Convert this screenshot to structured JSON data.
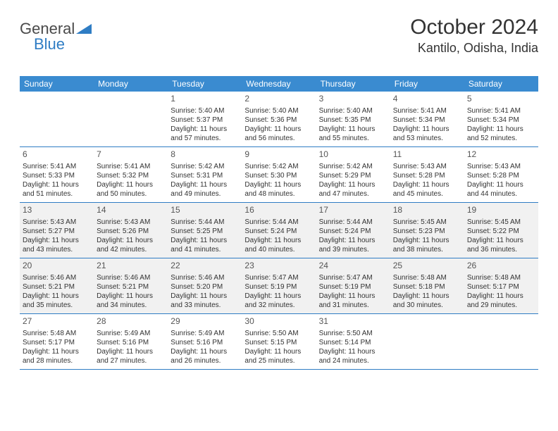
{
  "logo": {
    "part1": "General",
    "part2": "Blue"
  },
  "title": "October 2024",
  "location": "Kantilo, Odisha, India",
  "colors": {
    "header_bg": "#3a8bd0",
    "accent": "#2f7dc4",
    "text": "#333333",
    "shade_row_bg": "#f1f1f1"
  },
  "day_headers": [
    "Sunday",
    "Monday",
    "Tuesday",
    "Wednesday",
    "Thursday",
    "Friday",
    "Saturday"
  ],
  "weeks": [
    [
      null,
      null,
      {
        "n": "1",
        "sr": "5:40 AM",
        "ss": "5:37 PM",
        "d1": "11 hours",
        "d2": "57 minutes."
      },
      {
        "n": "2",
        "sr": "5:40 AM",
        "ss": "5:36 PM",
        "d1": "11 hours",
        "d2": "56 minutes."
      },
      {
        "n": "3",
        "sr": "5:40 AM",
        "ss": "5:35 PM",
        "d1": "11 hours",
        "d2": "55 minutes."
      },
      {
        "n": "4",
        "sr": "5:41 AM",
        "ss": "5:34 PM",
        "d1": "11 hours",
        "d2": "53 minutes."
      },
      {
        "n": "5",
        "sr": "5:41 AM",
        "ss": "5:34 PM",
        "d1": "11 hours",
        "d2": "52 minutes."
      }
    ],
    [
      {
        "n": "6",
        "sr": "5:41 AM",
        "ss": "5:33 PM",
        "d1": "11 hours",
        "d2": "51 minutes."
      },
      {
        "n": "7",
        "sr": "5:41 AM",
        "ss": "5:32 PM",
        "d1": "11 hours",
        "d2": "50 minutes."
      },
      {
        "n": "8",
        "sr": "5:42 AM",
        "ss": "5:31 PM",
        "d1": "11 hours",
        "d2": "49 minutes."
      },
      {
        "n": "9",
        "sr": "5:42 AM",
        "ss": "5:30 PM",
        "d1": "11 hours",
        "d2": "48 minutes."
      },
      {
        "n": "10",
        "sr": "5:42 AM",
        "ss": "5:29 PM",
        "d1": "11 hours",
        "d2": "47 minutes."
      },
      {
        "n": "11",
        "sr": "5:43 AM",
        "ss": "5:28 PM",
        "d1": "11 hours",
        "d2": "45 minutes."
      },
      {
        "n": "12",
        "sr": "5:43 AM",
        "ss": "5:28 PM",
        "d1": "11 hours",
        "d2": "44 minutes."
      }
    ],
    [
      {
        "n": "13",
        "sr": "5:43 AM",
        "ss": "5:27 PM",
        "d1": "11 hours",
        "d2": "43 minutes."
      },
      {
        "n": "14",
        "sr": "5:43 AM",
        "ss": "5:26 PM",
        "d1": "11 hours",
        "d2": "42 minutes."
      },
      {
        "n": "15",
        "sr": "5:44 AM",
        "ss": "5:25 PM",
        "d1": "11 hours",
        "d2": "41 minutes."
      },
      {
        "n": "16",
        "sr": "5:44 AM",
        "ss": "5:24 PM",
        "d1": "11 hours",
        "d2": "40 minutes."
      },
      {
        "n": "17",
        "sr": "5:44 AM",
        "ss": "5:24 PM",
        "d1": "11 hours",
        "d2": "39 minutes."
      },
      {
        "n": "18",
        "sr": "5:45 AM",
        "ss": "5:23 PM",
        "d1": "11 hours",
        "d2": "38 minutes."
      },
      {
        "n": "19",
        "sr": "5:45 AM",
        "ss": "5:22 PM",
        "d1": "11 hours",
        "d2": "36 minutes."
      }
    ],
    [
      {
        "n": "20",
        "sr": "5:46 AM",
        "ss": "5:21 PM",
        "d1": "11 hours",
        "d2": "35 minutes."
      },
      {
        "n": "21",
        "sr": "5:46 AM",
        "ss": "5:21 PM",
        "d1": "11 hours",
        "d2": "34 minutes."
      },
      {
        "n": "22",
        "sr": "5:46 AM",
        "ss": "5:20 PM",
        "d1": "11 hours",
        "d2": "33 minutes."
      },
      {
        "n": "23",
        "sr": "5:47 AM",
        "ss": "5:19 PM",
        "d1": "11 hours",
        "d2": "32 minutes."
      },
      {
        "n": "24",
        "sr": "5:47 AM",
        "ss": "5:19 PM",
        "d1": "11 hours",
        "d2": "31 minutes."
      },
      {
        "n": "25",
        "sr": "5:48 AM",
        "ss": "5:18 PM",
        "d1": "11 hours",
        "d2": "30 minutes."
      },
      {
        "n": "26",
        "sr": "5:48 AM",
        "ss": "5:17 PM",
        "d1": "11 hours",
        "d2": "29 minutes."
      }
    ],
    [
      {
        "n": "27",
        "sr": "5:48 AM",
        "ss": "5:17 PM",
        "d1": "11 hours",
        "d2": "28 minutes."
      },
      {
        "n": "28",
        "sr": "5:49 AM",
        "ss": "5:16 PM",
        "d1": "11 hours",
        "d2": "27 minutes."
      },
      {
        "n": "29",
        "sr": "5:49 AM",
        "ss": "5:16 PM",
        "d1": "11 hours",
        "d2": "26 minutes."
      },
      {
        "n": "30",
        "sr": "5:50 AM",
        "ss": "5:15 PM",
        "d1": "11 hours",
        "d2": "25 minutes."
      },
      {
        "n": "31",
        "sr": "5:50 AM",
        "ss": "5:14 PM",
        "d1": "11 hours",
        "d2": "24 minutes."
      },
      null,
      null
    ]
  ],
  "labels": {
    "sunrise": "Sunrise:",
    "sunset": "Sunset:",
    "daylight": "Daylight:",
    "and": "and"
  }
}
